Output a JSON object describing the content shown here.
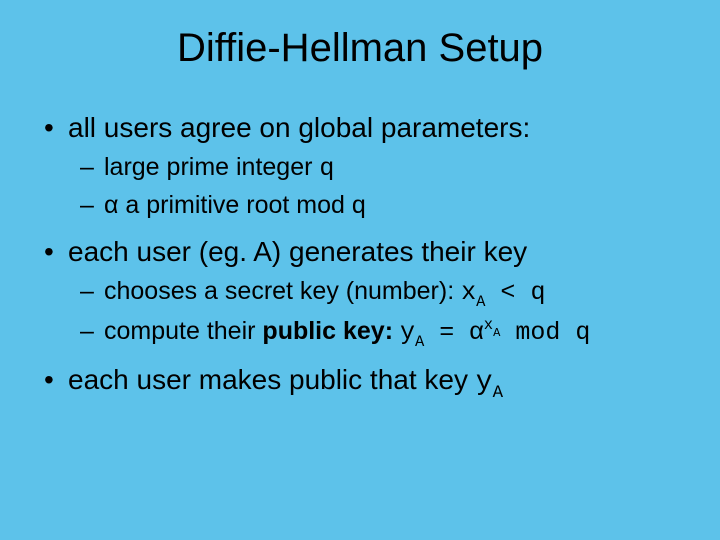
{
  "background_color": "#5dc2ea",
  "text_color": "#000000",
  "title_fontsize": 40,
  "lvl1_fontsize": 28,
  "lvl2_fontsize": 25,
  "mono_family": "Courier New",
  "title": "Diffie-Hellman Setup",
  "b1": "all users agree on global parameters:",
  "b1a_pre": "large prime integer ",
  "b1a_q": "q",
  "b1b": "α a primitive root mod q",
  "b2": "each user (eg. A) generates their key",
  "b2a_pre": "chooses a secret key (number): ",
  "b2a_x": "x",
  "b2a_A": "A",
  "b2a_lt": " < ",
  "b2a_q": " q",
  "b2b_pre": "compute their ",
  "b2b_bold": "public key:",
  "b2b_sp": " ",
  "b2b_y": "y",
  "b2b_Ay": "A",
  "b2b_eq": " = ",
  "b2b_alpha": "α",
  "b2b_supx": "x",
  "b2b_supA": "A",
  "b2b_mod": " mod q",
  "b3_pre": " each user makes public that key ",
  "b3_y": "y",
  "b3_A": "A"
}
